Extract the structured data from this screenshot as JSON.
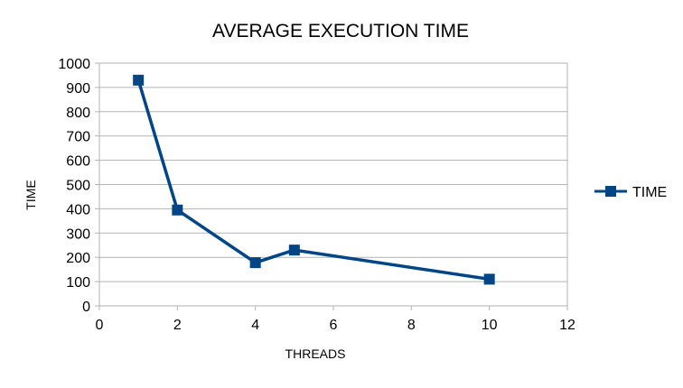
{
  "chart_data": {
    "type": "line",
    "title": "AVERAGE EXECUTION TIME",
    "xlabel": "THREADS",
    "ylabel": "TIME",
    "xlim": [
      0,
      12
    ],
    "ylim": [
      0,
      1000
    ],
    "x_ticks": [
      0,
      2,
      4,
      6,
      8,
      10,
      12
    ],
    "y_ticks": [
      0,
      100,
      200,
      300,
      400,
      500,
      600,
      700,
      800,
      900,
      1000
    ],
    "grid": "horizontal",
    "legend_position": "right",
    "series": [
      {
        "name": "TIME",
        "color": "#004586",
        "marker": "square",
        "x": [
          1,
          2,
          4,
          5,
          10
        ],
        "y": [
          930,
          395,
          178,
          230,
          110
        ]
      }
    ]
  }
}
